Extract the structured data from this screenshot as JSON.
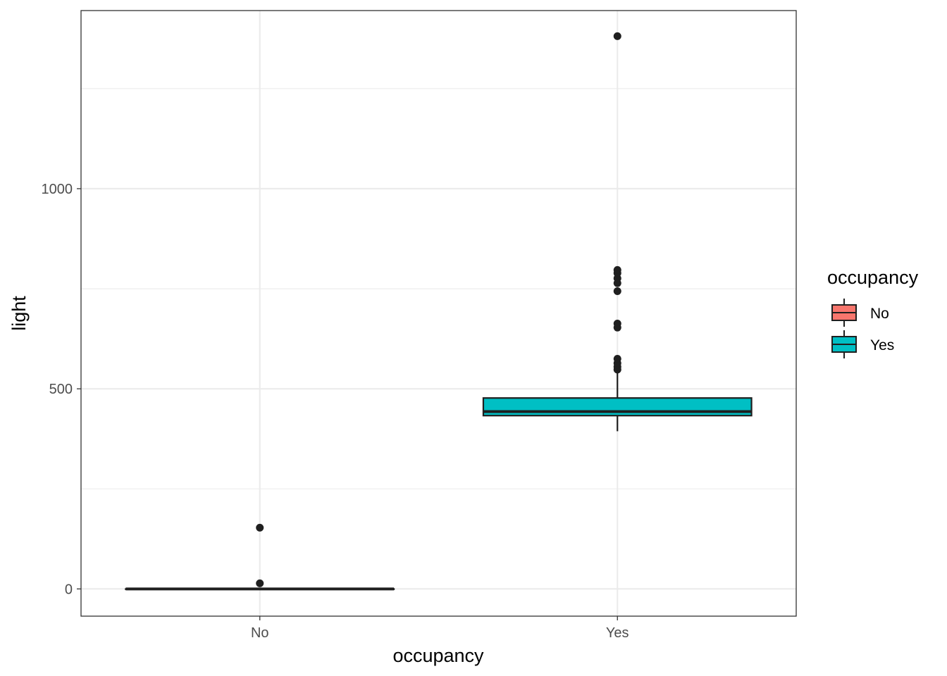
{
  "chart_data": {
    "type": "boxplot",
    "title": "",
    "xlabel": "occupancy",
    "ylabel": "light",
    "categories": [
      "No",
      "Yes"
    ],
    "ylim": [
      -68,
      1445
    ],
    "yticks": [
      0,
      500,
      1000
    ],
    "ytick_labels": [
      "0",
      "500",
      "1000"
    ],
    "grid": true,
    "boxes": [
      {
        "category": "No",
        "fill": "#F8766D",
        "min": 0,
        "q1": 0,
        "median": 0,
        "q3": 0,
        "max": 0,
        "outliers": [
          14,
          153
        ]
      },
      {
        "category": "Yes",
        "fill": "#00BFC4",
        "min": 394,
        "q1": 433,
        "median": 443,
        "q3": 477,
        "max": 541,
        "outliers": [
          548,
          555,
          564,
          575,
          653,
          663,
          744,
          764,
          776,
          789,
          797,
          1381
        ]
      }
    ],
    "legend": {
      "title": "occupancy",
      "position": "right",
      "items": [
        {
          "label": "No",
          "color": "#F8766D"
        },
        {
          "label": "Yes",
          "color": "#00BFC4"
        }
      ]
    }
  }
}
